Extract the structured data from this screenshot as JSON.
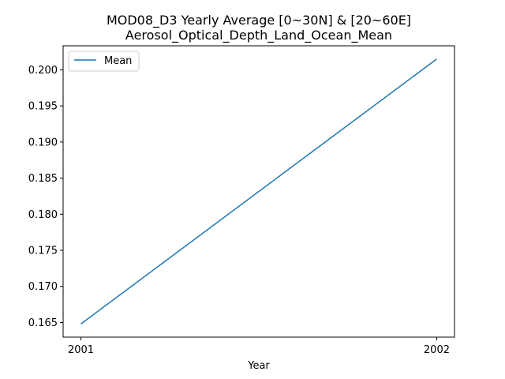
{
  "chart_data": {
    "type": "line",
    "title": "MOD08_D3 Yearly Average [0~30N] & [20~60E]",
    "subtitle": "Aerosol_Optical_Depth_Land_Ocean_Mean",
    "xlabel": "Year",
    "ylabel": "",
    "x": [
      "2001",
      "2002"
    ],
    "series": [
      {
        "name": "Mean",
        "values": [
          0.1648,
          0.2015
        ],
        "color": "#1f77b4"
      }
    ],
    "xlim": [
      -0.05,
      1.05
    ],
    "ylim": [
      0.16297,
      0.20333
    ],
    "yticks": [
      "0.165",
      "0.170",
      "0.175",
      "0.180",
      "0.185",
      "0.190",
      "0.195",
      "0.200"
    ],
    "ytick_values": [
      0.165,
      0.17,
      0.175,
      0.18,
      0.185,
      0.19,
      0.195,
      0.2
    ],
    "grid": false,
    "legend_position": "upper-left"
  }
}
